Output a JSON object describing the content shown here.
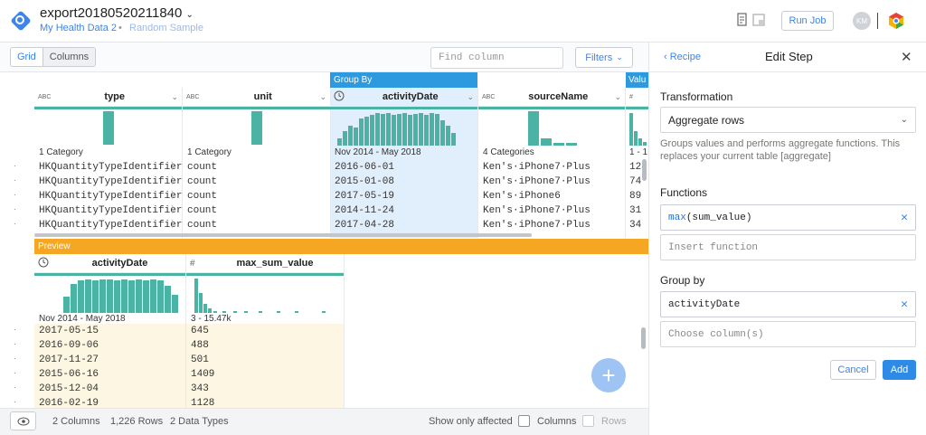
{
  "header": {
    "title": "export20180520211840",
    "flow_name": "My Health Data 2",
    "separator": "•",
    "sample": "Random Sample",
    "run_job": "Run Job",
    "avatar_initials": "KM"
  },
  "toolbar": {
    "grid_tab": "Grid",
    "columns_tab": "Columns",
    "find_placeholder": "Find column",
    "filters": "Filters"
  },
  "grid": {
    "group_by_label": "Group By",
    "value_tag": "Valu",
    "columns": [
      {
        "type_icon": "ABC",
        "name": "type",
        "category": "1 Category"
      },
      {
        "type_icon": "ABC",
        "name": "unit",
        "category": "1 Category"
      },
      {
        "type_icon": "clock-icon",
        "name": "activityDate",
        "category": "Nov 2014 - May 2018"
      },
      {
        "type_icon": "ABC",
        "name": "sourceName",
        "category": "4 Categories"
      },
      {
        "type_icon": "#",
        "name": "",
        "category": "1 - 1"
      }
    ],
    "rows": [
      [
        "HKQuantityTypeIdentifier",
        "count",
        "2016-06-01",
        "Ken's·iPhone7·Plus",
        "12"
      ],
      [
        "HKQuantityTypeIdentifier",
        "count",
        "2015-01-08",
        "Ken's·iPhone7·Plus",
        "74"
      ],
      [
        "HKQuantityTypeIdentifier",
        "count",
        "2017-05-19",
        "Ken's·iPhone6",
        "89"
      ],
      [
        "HKQuantityTypeIdentifier",
        "count",
        "2014-11-24",
        "Ken's·iPhone7·Plus",
        "31"
      ],
      [
        "HKQuantityTypeIdentifier",
        "count",
        "2017-04-28",
        "Ken's·iPhone7·Plus",
        "34"
      ]
    ]
  },
  "preview": {
    "label": "Preview",
    "columns": [
      {
        "type_icon": "clock-icon",
        "name": "activityDate",
        "category": "Nov 2014 - May 2018"
      },
      {
        "type_icon": "#",
        "name": "max_sum_value",
        "category": "3 - 15.47k"
      }
    ],
    "rows": [
      [
        "2017-05-15",
        "645"
      ],
      [
        "2016-09-06",
        "488"
      ],
      [
        "2017-11-27",
        "501"
      ],
      [
        "2015-06-16",
        "1409"
      ],
      [
        "2015-12-04",
        "343"
      ],
      [
        "2016-02-19",
        "1128"
      ]
    ]
  },
  "footer": {
    "columns_count": "2 Columns",
    "rows_count": "1,226 Rows",
    "data_types": "2 Data Types",
    "show_only_affected": "Show only affected",
    "columns_check": "Columns",
    "rows_check": "Rows"
  },
  "panel": {
    "recipe": "Recipe",
    "title": "Edit Step",
    "transformation_label": "Transformation",
    "transformation_value": "Aggregate rows",
    "transformation_desc": "Groups values and performs aggregate functions. This replaces your current table [aggregate]",
    "functions_label": "Functions",
    "function_fn": "max",
    "function_arg": "(sum_value)",
    "insert_function_placeholder": "Insert function",
    "group_by_label": "Group by",
    "group_by_value": "activityDate",
    "choose_columns_placeholder": "Choose column(s)",
    "cancel": "Cancel",
    "add": "Add"
  },
  "colors": {
    "accent": "#3d84ec",
    "histogram": "#4bb3a3",
    "group_by": "#2d9ae0",
    "preview": "#f5a623",
    "selected_column_bg": "#e1eefb",
    "preview_row_bg": "#fdf6e3"
  }
}
